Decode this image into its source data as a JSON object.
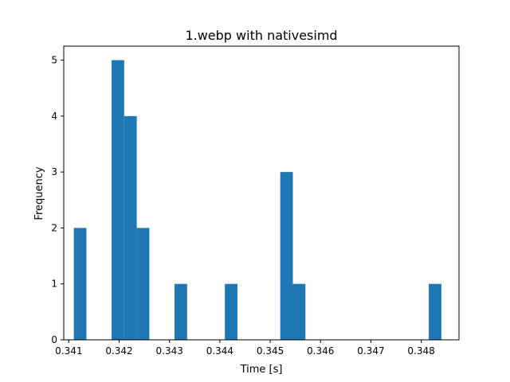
{
  "chart_data": {
    "type": "bar",
    "title": "1.webp with nativesimd",
    "xlabel": "Time [s]",
    "ylabel": "Frequency",
    "xlim": [
      0.3409,
      0.34875
    ],
    "ylim": [
      0,
      5.25
    ],
    "xticks": [
      "0.341",
      "0.342",
      "0.343",
      "0.344",
      "0.345",
      "0.346",
      "0.347",
      "0.348"
    ],
    "yticks": [
      "0",
      "1",
      "2",
      "3",
      "4",
      "5"
    ],
    "bin_edges": [
      0.3411,
      0.3416,
      0.3421,
      0.3426,
      0.3431,
      0.3436,
      0.3441,
      0.3446,
      0.3451,
      0.3456,
      0.3461,
      0.3466,
      0.3471,
      0.3476,
      0.3481,
      0.3486
    ],
    "bins": [
      {
        "x0": 0.3411,
        "x1": 0.34135,
        "value": 2
      },
      {
        "x0": 0.3416,
        "x1": 0.34185,
        "value": 0
      },
      {
        "x0": 0.34185,
        "x1": 0.3421,
        "value": 5
      },
      {
        "x0": 0.3421,
        "x1": 0.34235,
        "value": 4
      },
      {
        "x0": 0.34235,
        "x1": 0.3426,
        "value": 2
      },
      {
        "x0": 0.3431,
        "x1": 0.34335,
        "value": 1
      },
      {
        "x0": 0.3441,
        "x1": 0.34435,
        "value": 1
      },
      {
        "x0": 0.3452,
        "x1": 0.34545,
        "value": 3
      },
      {
        "x0": 0.34545,
        "x1": 0.3457,
        "value": 1
      },
      {
        "x0": 0.34815,
        "x1": 0.3484,
        "value": 1
      }
    ],
    "bar_color": "#1f77b4",
    "grid": false
  }
}
